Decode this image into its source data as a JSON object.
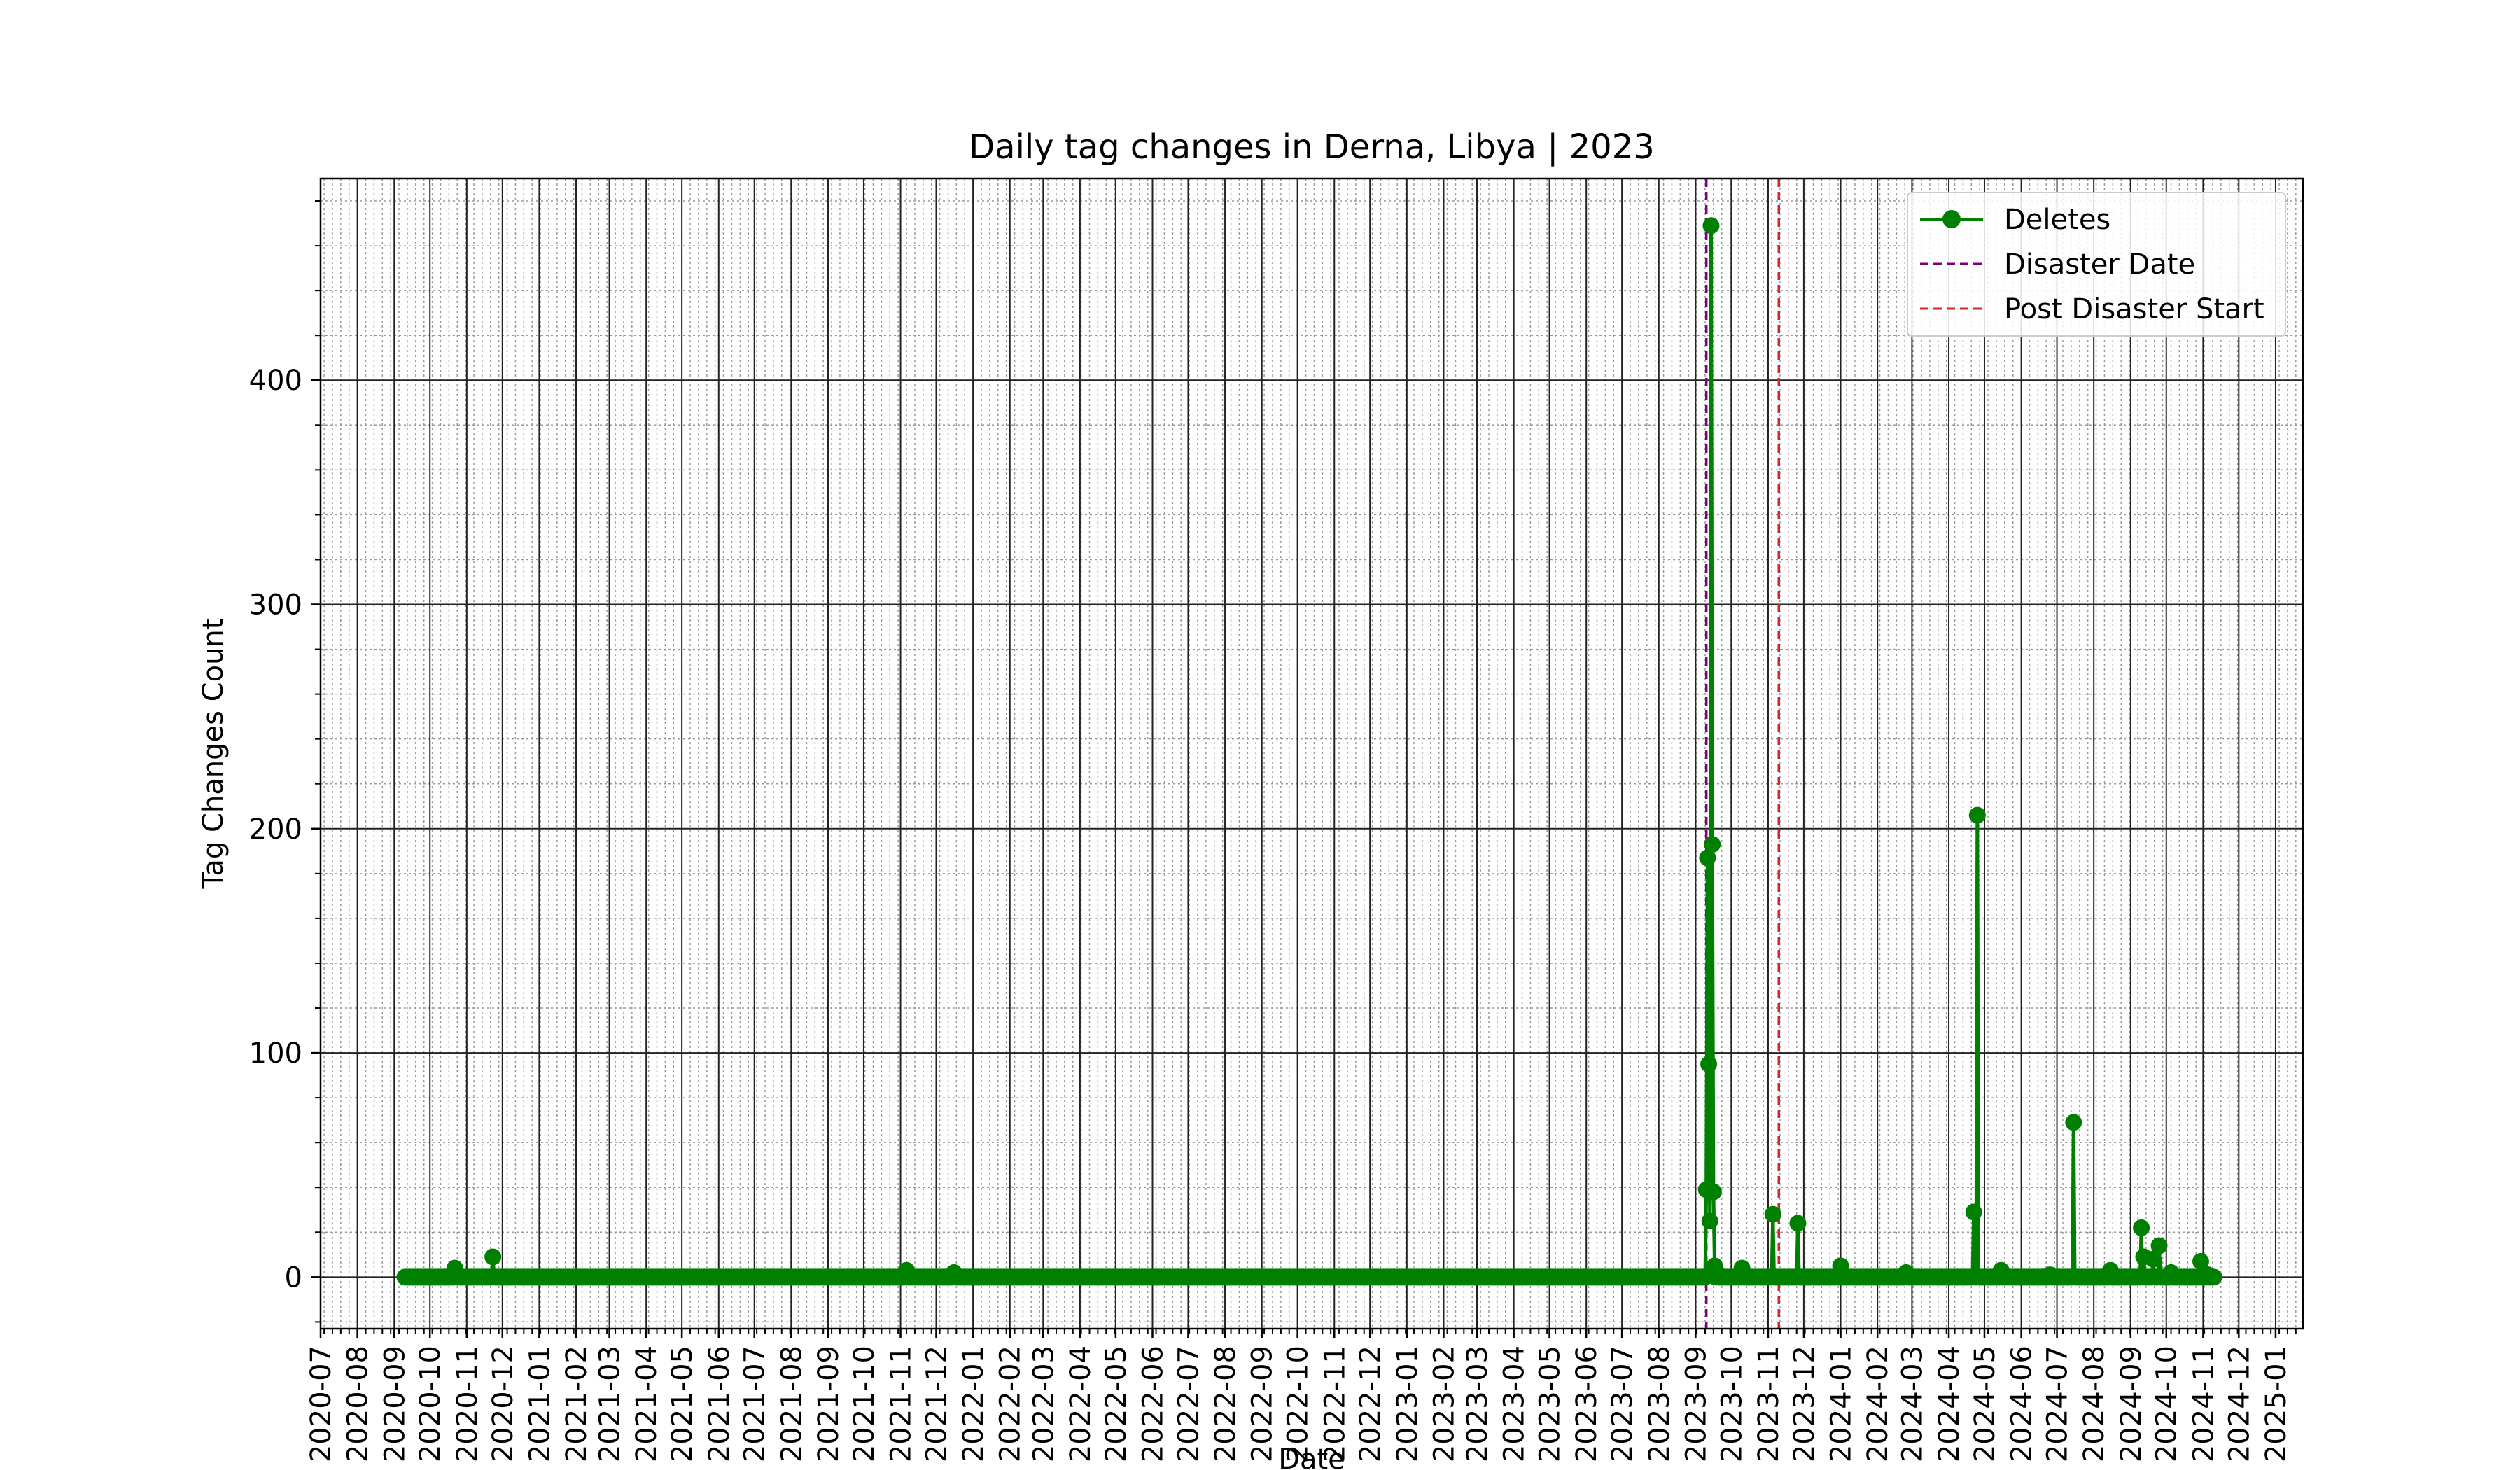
{
  "chart_data": {
    "type": "line",
    "title": "Daily tag changes in Derna, Libya | 2023",
    "xlabel": "Date",
    "ylabel": "Tag Changes Count",
    "xlim": [
      "2020-07-01",
      "2025-01-24"
    ],
    "ylim": [
      -23,
      490
    ],
    "y_ticks": [
      0,
      100,
      200,
      300,
      400
    ],
    "x_ticks": [
      "2020-07",
      "2020-08",
      "2020-09",
      "2020-10",
      "2020-11",
      "2020-12",
      "2021-01",
      "2021-02",
      "2021-03",
      "2021-04",
      "2021-05",
      "2021-06",
      "2021-07",
      "2021-08",
      "2021-09",
      "2021-10",
      "2021-11",
      "2021-12",
      "2022-01",
      "2022-02",
      "2022-03",
      "2022-04",
      "2022-05",
      "2022-06",
      "2022-07",
      "2022-08",
      "2022-09",
      "2022-10",
      "2022-11",
      "2022-12",
      "2023-01",
      "2023-02",
      "2023-03",
      "2023-04",
      "2023-05",
      "2023-06",
      "2023-07",
      "2023-08",
      "2023-09",
      "2023-10",
      "2023-11",
      "2023-12",
      "2024-01",
      "2024-02",
      "2024-03",
      "2024-04",
      "2024-05",
      "2024-06",
      "2024-07",
      "2024-08",
      "2024-09",
      "2024-10",
      "2024-11",
      "2024-12",
      "2025-01"
    ],
    "grid": true,
    "legend_position": "top-right",
    "series": [
      {
        "name": "Deletes",
        "color": "#008000",
        "marker": "circle",
        "points": [
          {
            "x": "2020-09-10",
            "y": 0
          },
          {
            "x": "2020-10-22",
            "y": 4
          },
          {
            "x": "2020-11-23",
            "y": 9
          },
          {
            "x": "2021-11-06",
            "y": 3
          },
          {
            "x": "2021-12-16",
            "y": 2
          },
          {
            "x": "2023-09-10",
            "y": 39
          },
          {
            "x": "2023-09-11",
            "y": 187
          },
          {
            "x": "2023-09-12",
            "y": 95
          },
          {
            "x": "2023-09-13",
            "y": 25
          },
          {
            "x": "2023-09-14",
            "y": 469
          },
          {
            "x": "2023-09-15",
            "y": 193
          },
          {
            "x": "2023-09-16",
            "y": 38
          },
          {
            "x": "2023-09-17",
            "y": 5
          },
          {
            "x": "2023-09-19",
            "y": 2
          },
          {
            "x": "2023-10-10",
            "y": 4
          },
          {
            "x": "2023-11-05",
            "y": 28
          },
          {
            "x": "2023-11-26",
            "y": 24
          },
          {
            "x": "2024-01-01",
            "y": 5
          },
          {
            "x": "2024-02-25",
            "y": 2
          },
          {
            "x": "2024-04-22",
            "y": 29
          },
          {
            "x": "2024-04-25",
            "y": 206
          },
          {
            "x": "2024-05-15",
            "y": 3
          },
          {
            "x": "2024-06-25",
            "y": 1
          },
          {
            "x": "2024-07-15",
            "y": 69
          },
          {
            "x": "2024-08-15",
            "y": 3
          },
          {
            "x": "2024-09-10",
            "y": 22
          },
          {
            "x": "2024-09-12",
            "y": 9
          },
          {
            "x": "2024-09-20",
            "y": 8
          },
          {
            "x": "2024-09-25",
            "y": 14
          },
          {
            "x": "2024-10-05",
            "y": 2
          },
          {
            "x": "2024-10-30",
            "y": 7
          },
          {
            "x": "2024-11-05",
            "y": 1
          },
          {
            "x": "2024-11-10",
            "y": 0
          }
        ]
      }
    ],
    "reference_lines": [
      {
        "name": "Disaster Date",
        "x": "2023-09-10",
        "color": "#800080",
        "style": "dashed"
      },
      {
        "name": "Post Disaster Start",
        "x": "2023-11-10",
        "color": "#d62728",
        "style": "dashed"
      }
    ]
  }
}
